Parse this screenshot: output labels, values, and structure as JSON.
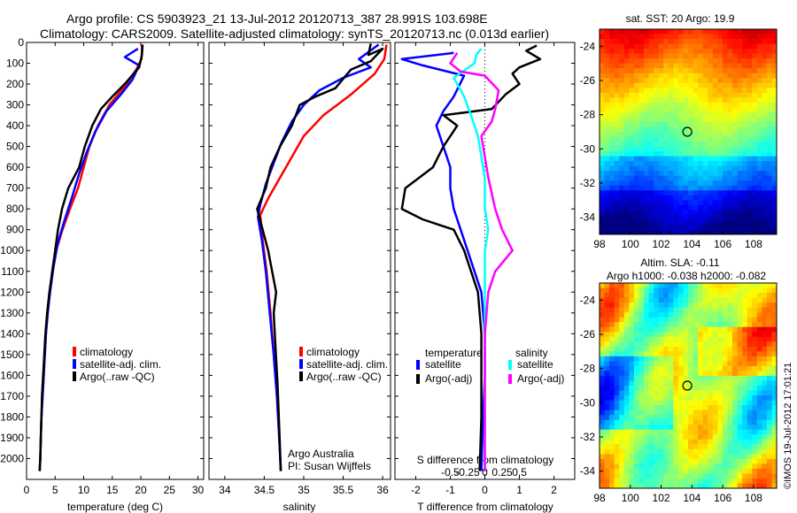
{
  "header": {
    "line1": "Argo profile: CS 5903923_21 13-Jul-2012 20120713_387 28.991S 103.698E",
    "line2": "Climatology: CARS2009. Satellite-adjusted climatology: synTS_20120713.nc (0.013d earlier)"
  },
  "colors": {
    "climatology": "#ff0000",
    "satellite": "#0000ff",
    "argo": "#000000",
    "salinity_sat": "#00ffff",
    "salinity_argo": "#ff00ff"
  },
  "chart_data": [
    {
      "type": "line",
      "name": "temperature",
      "xlabel": "temperature (deg C)",
      "ylabel": "",
      "xlim": [
        0,
        31
      ],
      "ylim": [
        2100,
        0
      ],
      "xticks": [
        0,
        5,
        10,
        15,
        20,
        25,
        30
      ],
      "yticks": [
        0,
        100,
        200,
        300,
        400,
        500,
        600,
        700,
        800,
        900,
        1000,
        1100,
        1200,
        1300,
        1400,
        1500,
        1600,
        1700,
        1800,
        1900,
        2000
      ],
      "legend": [
        "climatology",
        "satellite-adj. clim.",
        "Argo(..raw -QC)"
      ],
      "series": [
        {
          "name": "climatology",
          "color": "#ff0000",
          "points": [
            [
              20.2,
              10
            ],
            [
              20.2,
              40
            ],
            [
              20.1,
              80
            ],
            [
              19.2,
              130
            ],
            [
              17.5,
              200
            ],
            [
              14.5,
              300
            ],
            [
              12.5,
              400
            ],
            [
              11.0,
              500
            ],
            [
              10.0,
              600
            ],
            [
              9.0,
              700
            ],
            [
              7.6,
              800
            ],
            [
              6.3,
              900
            ],
            [
              5.2,
              1000
            ],
            [
              4.6,
              1100
            ],
            [
              4.1,
              1200
            ],
            [
              3.7,
              1300
            ],
            [
              3.4,
              1400
            ],
            [
              3.2,
              1500
            ],
            [
              3.0,
              1600
            ],
            [
              2.8,
              1700
            ],
            [
              2.6,
              1800
            ],
            [
              2.5,
              1900
            ],
            [
              2.4,
              2000
            ],
            [
              2.3,
              2060
            ]
          ]
        },
        {
          "name": "satellite-adj. clim.",
          "color": "#0000ff",
          "points": [
            [
              19.5,
              30
            ],
            [
              17.2,
              70
            ],
            [
              19.7,
              110
            ],
            [
              18.5,
              180
            ],
            [
              16.5,
              250
            ],
            [
              14.0,
              330
            ],
            [
              12.0,
              430
            ],
            [
              10.5,
              530
            ],
            [
              9.2,
              630
            ],
            [
              8.0,
              740
            ],
            [
              6.7,
              850
            ],
            [
              5.5,
              960
            ],
            [
              4.7,
              1080
            ],
            [
              4.1,
              1200
            ],
            [
              3.7,
              1300
            ],
            [
              3.4,
              1400
            ],
            [
              3.2,
              1500
            ],
            [
              3.0,
              1600
            ],
            [
              2.8,
              1700
            ],
            [
              2.6,
              1800
            ],
            [
              2.5,
              1900
            ],
            [
              2.4,
              2000
            ],
            [
              2.3,
              2060
            ]
          ]
        },
        {
          "name": "Argo(..raw -QC)",
          "color": "#000000",
          "points": [
            [
              20.3,
              10
            ],
            [
              20.2,
              60
            ],
            [
              19.7,
              120
            ],
            [
              17.5,
              190
            ],
            [
              15.0,
              260
            ],
            [
              13.0,
              320
            ],
            [
              11.5,
              400
            ],
            [
              10.2,
              500
            ],
            [
              9.2,
              600
            ],
            [
              7.3,
              700
            ],
            [
              6.2,
              800
            ],
            [
              5.5,
              900
            ],
            [
              5.0,
              1000
            ],
            [
              4.5,
              1100
            ],
            [
              4.0,
              1200
            ],
            [
              3.6,
              1300
            ],
            [
              3.3,
              1400
            ],
            [
              3.1,
              1500
            ],
            [
              2.9,
              1600
            ],
            [
              2.7,
              1700
            ],
            [
              2.6,
              1800
            ],
            [
              2.5,
              1900
            ],
            [
              2.4,
              2000
            ],
            [
              2.3,
              2060
            ]
          ]
        }
      ]
    },
    {
      "type": "line",
      "name": "salinity",
      "xlabel": "salinity",
      "ylabel": "",
      "xlim": [
        33.8,
        36.1
      ],
      "ylim": [
        2100,
        0
      ],
      "xticks": [
        34,
        34.5,
        35,
        35.5,
        36
      ],
      "legend": [
        "climatology",
        "satellite-adj. clim.",
        "Argo(..raw -QC)"
      ],
      "annotations": [
        "Argo Australia",
        "PI: Susan Wijffels"
      ],
      "series": [
        {
          "name": "climatology",
          "color": "#ff0000",
          "points": [
            [
              36.05,
              10
            ],
            [
              36.02,
              80
            ],
            [
              35.9,
              150
            ],
            [
              35.6,
              250
            ],
            [
              35.25,
              350
            ],
            [
              35.0,
              450
            ],
            [
              34.85,
              550
            ],
            [
              34.7,
              650
            ],
            [
              34.55,
              750
            ],
            [
              34.45,
              830
            ],
            [
              34.48,
              950
            ],
            [
              34.53,
              1100
            ],
            [
              34.58,
              1300
            ],
            [
              34.62,
              1500
            ],
            [
              34.66,
              1700
            ],
            [
              34.69,
              1900
            ],
            [
              34.71,
              2060
            ]
          ]
        },
        {
          "name": "satellite-adj. clim.",
          "color": "#0000ff",
          "points": [
            [
              35.95,
              10
            ],
            [
              35.7,
              80
            ],
            [
              35.85,
              120
            ],
            [
              35.5,
              170
            ],
            [
              35.2,
              230
            ],
            [
              35.0,
              300
            ],
            [
              34.85,
              380
            ],
            [
              34.72,
              480
            ],
            [
              34.62,
              580
            ],
            [
              34.52,
              680
            ],
            [
              34.45,
              780
            ],
            [
              34.42,
              840
            ],
            [
              34.47,
              950
            ],
            [
              34.52,
              1100
            ],
            [
              34.57,
              1300
            ],
            [
              34.62,
              1500
            ],
            [
              34.66,
              1700
            ],
            [
              34.69,
              1900
            ],
            [
              34.71,
              2060
            ]
          ]
        },
        {
          "name": "Argo(..raw -QC)",
          "color": "#000000",
          "points": [
            [
              35.85,
              5
            ],
            [
              35.82,
              60
            ],
            [
              36.0,
              30
            ],
            [
              35.85,
              90
            ],
            [
              35.6,
              130
            ],
            [
              35.4,
              220
            ],
            [
              35.15,
              260
            ],
            [
              34.95,
              300
            ],
            [
              34.85,
              400
            ],
            [
              34.7,
              500
            ],
            [
              34.58,
              600
            ],
            [
              34.52,
              700
            ],
            [
              34.41,
              800
            ],
            [
              34.48,
              900
            ],
            [
              34.55,
              1000
            ],
            [
              34.6,
              1100
            ],
            [
              34.65,
              1200
            ],
            [
              34.62,
              1300
            ],
            [
              34.64,
              1450
            ],
            [
              34.67,
              1650
            ],
            [
              34.69,
              1850
            ],
            [
              34.71,
              2060
            ]
          ]
        }
      ]
    },
    {
      "type": "line",
      "name": "differences",
      "xlabel": "T difference from climatology",
      "top_label": "S difference from climatology",
      "xlim": [
        -2.6,
        2.6
      ],
      "ylim": [
        2100,
        0
      ],
      "xticks": [
        -2,
        -1,
        0,
        1,
        2
      ],
      "top_ticks": [
        -0.5,
        -0.25,
        0,
        0.25,
        0.5
      ],
      "legend_titles": [
        "temperature",
        "salinity"
      ],
      "legend": [
        "satellite",
        "Argo(-adj)",
        "satellite",
        "Argo(-adj)"
      ],
      "series": [
        {
          "name": "temperature satellite",
          "color": "#0000ff",
          "points": [
            [
              -0.9,
              50
            ],
            [
              -2.4,
              80
            ],
            [
              -1.8,
              110
            ],
            [
              -0.6,
              160
            ],
            [
              -0.9,
              260
            ],
            [
              -1.2,
              330
            ],
            [
              -1.4,
              400
            ],
            [
              -1.2,
              500
            ],
            [
              -1.0,
              600
            ],
            [
              -1.0,
              700
            ],
            [
              -0.9,
              800
            ],
            [
              -0.7,
              900
            ],
            [
              -0.5,
              1000
            ],
            [
              -0.3,
              1100
            ],
            [
              -0.1,
              1200
            ],
            [
              0.0,
              1400
            ],
            [
              0.0,
              1600
            ],
            [
              -0.05,
              1800
            ],
            [
              -0.1,
              2060
            ]
          ]
        },
        {
          "name": "temperature Argo(-adj)",
          "color": "#000000",
          "points": [
            [
              1.5,
              15
            ],
            [
              1.2,
              40
            ],
            [
              1.6,
              80
            ],
            [
              1.0,
              120
            ],
            [
              0.8,
              150
            ],
            [
              1.0,
              200
            ],
            [
              0.6,
              250
            ],
            [
              0.2,
              320
            ],
            [
              -1.2,
              350
            ],
            [
              -0.8,
              400
            ],
            [
              -1.0,
              450
            ],
            [
              -1.2,
              500
            ],
            [
              -1.5,
              600
            ],
            [
              -2.3,
              700
            ],
            [
              -2.4,
              800
            ],
            [
              -1.8,
              850
            ],
            [
              -0.9,
              900
            ],
            [
              -0.6,
              1000
            ],
            [
              -0.4,
              1100
            ],
            [
              -0.2,
              1200
            ],
            [
              -0.1,
              1400
            ],
            [
              -0.1,
              1600
            ],
            [
              -0.1,
              1800
            ],
            [
              -0.15,
              2060
            ]
          ]
        },
        {
          "name": "salinity satellite",
          "color": "#00ffff",
          "points": [
            [
              -0.1,
              30
            ],
            [
              -0.25,
              60
            ],
            [
              -0.3,
              100
            ],
            [
              -0.9,
              170
            ],
            [
              -0.6,
              260
            ],
            [
              -0.4,
              350
            ],
            [
              -0.2,
              450
            ],
            [
              -0.1,
              550
            ],
            [
              0.0,
              650
            ],
            [
              0.0,
              800
            ],
            [
              0.1,
              900
            ],
            [
              0.0,
              1000
            ],
            [
              0.0,
              1200
            ],
            [
              0.0,
              1500
            ],
            [
              0.0,
              1800
            ],
            [
              0.0,
              2060
            ]
          ]
        },
        {
          "name": "salinity Argo(-adj)",
          "color": "#ff00ff",
          "points": [
            [
              -0.8,
              50
            ],
            [
              -1.0,
              100
            ],
            [
              -0.7,
              140
            ],
            [
              0.0,
              160
            ],
            [
              0.4,
              230
            ],
            [
              0.3,
              320
            ],
            [
              0.2,
              380
            ],
            [
              -0.1,
              450
            ],
            [
              0.0,
              550
            ],
            [
              0.1,
              650
            ],
            [
              0.3,
              800
            ],
            [
              0.5,
              900
            ],
            [
              0.8,
              1000
            ],
            [
              0.3,
              1100
            ],
            [
              0.1,
              1200
            ],
            [
              0.0,
              1400
            ],
            [
              0.0,
              1600
            ],
            [
              0.0,
              1800
            ],
            [
              0.0,
              2060
            ]
          ]
        }
      ]
    },
    {
      "type": "heatmap",
      "name": "sat-sst",
      "title": "sat. SST: 20 Argo: 19.9",
      "xlim": [
        98,
        109.5
      ],
      "ylim": [
        -35,
        -23
      ],
      "xticks": [
        98,
        100,
        102,
        104,
        106,
        108
      ],
      "yticks": [
        -24,
        -26,
        -28,
        -30,
        -32,
        -34
      ],
      "marker": [
        103.7,
        -29.0
      ]
    },
    {
      "type": "heatmap",
      "name": "altim-sla",
      "title": "Altim. SLA: -0.11",
      "subtitle": "Argo h1000: -0.038 h2000: -0.082",
      "xlim": [
        98,
        109.5
      ],
      "ylim": [
        -35,
        -23
      ],
      "xticks": [
        98,
        100,
        102,
        104,
        106,
        108
      ],
      "yticks": [
        -24,
        -26,
        -28,
        -30,
        -32,
        -34
      ],
      "marker": [
        103.7,
        -29.0
      ]
    }
  ],
  "side_stamp": "©IMOS 19-Jul-2012 17:01:21"
}
